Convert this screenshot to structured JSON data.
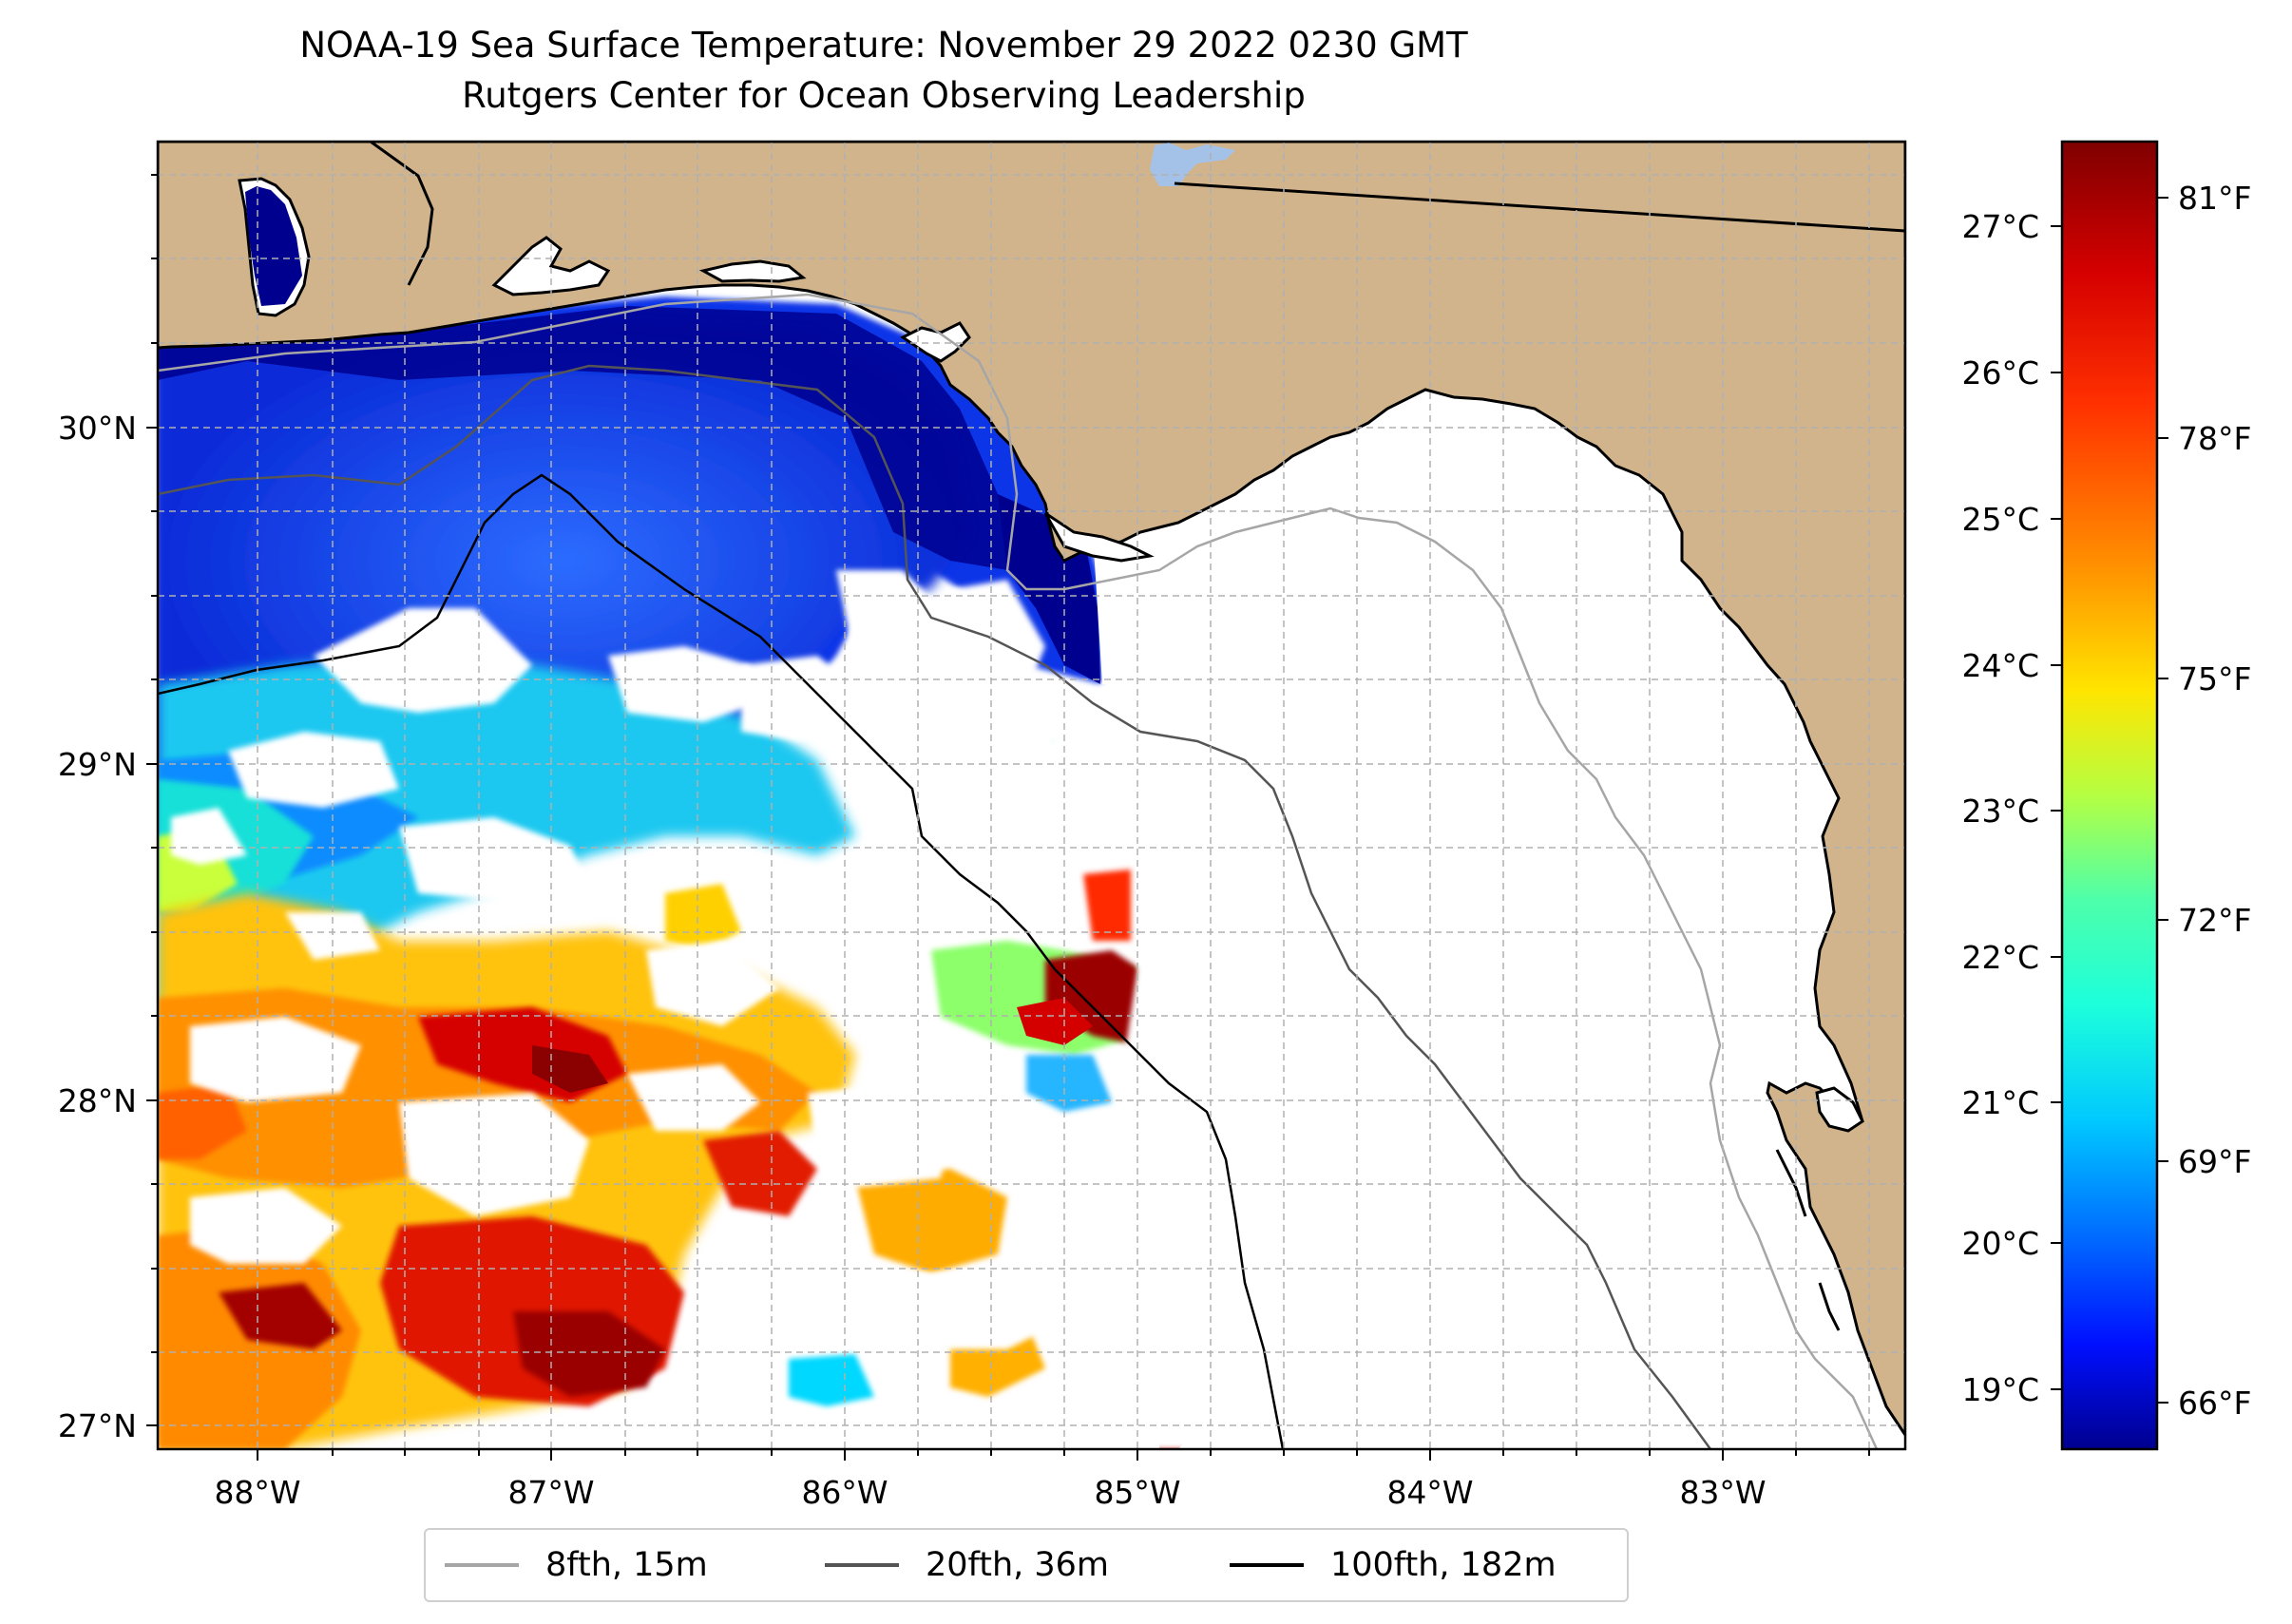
{
  "title": {
    "line1": "NOAA-19 Sea Surface Temperature: November 29 2022 0230 GMT",
    "line2": "Rutgers Center for Ocean Observing Leadership"
  },
  "axes": {
    "lon_ticks": [
      "88°W",
      "87°W",
      "86°W",
      "85°W",
      "84°W",
      "83°W"
    ],
    "lat_ticks": [
      "30°N",
      "29°N",
      "28°N",
      "27°N"
    ]
  },
  "colorbar": {
    "celsius_ticks": [
      "27°C",
      "26°C",
      "25°C",
      "24°C",
      "23°C",
      "22°C",
      "21°C",
      "20°C",
      "19°C"
    ],
    "fahrenheit_ticks": [
      "81°F",
      "78°F",
      "75°F",
      "72°F",
      "69°F",
      "66°F"
    ],
    "colormap": "jet",
    "colors": [
      "#7f0000",
      "#d50000",
      "#ff3000",
      "#ff8d00",
      "#ffe500",
      "#c4ff33",
      "#6dff8a",
      "#1cffdb",
      "#00c8ff",
      "#0068ff",
      "#000fff",
      "#00008f"
    ]
  },
  "legend": {
    "items": [
      {
        "label": "8fth, 15m",
        "color": "#a6a6a6"
      },
      {
        "label": "20fth, 36m",
        "color": "#555555"
      },
      {
        "label": "100fth, 182m",
        "color": "#000000"
      }
    ]
  },
  "colors": {
    "land": "#d2b48c",
    "lake": "#a4c2e8"
  }
}
